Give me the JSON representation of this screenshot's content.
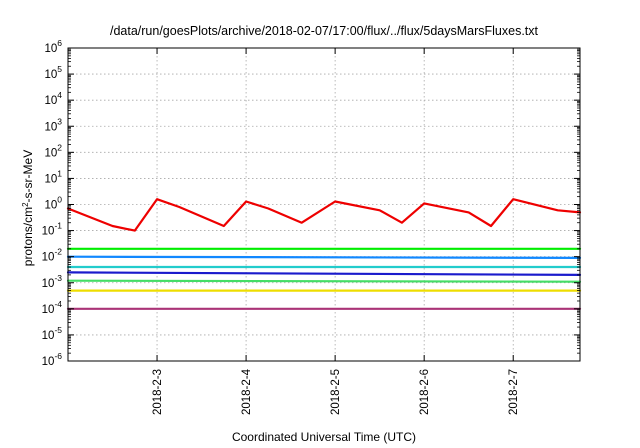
{
  "chart_data": {
    "type": "line",
    "title": "/data/run/goesPlots/archive/2018-02-07/17:00/flux/../flux/5daysMarsFluxes.txt",
    "xlabel": "Coordinated Universal Time (UTC)",
    "ylabel": "protons/cm²-s-sr-MeV",
    "ylabel_parts": {
      "pre": "protons/cm",
      "sup": "2",
      "post": "-s-sr-MeV"
    },
    "scale_y": "log",
    "ylim": [
      1e-06,
      1000000.0
    ],
    "xlim": [
      "2018-02-02 00:00",
      "2018-02-07 18:00"
    ],
    "grid": true,
    "legend": "none",
    "x_ticks": [
      {
        "label": "2018-2-3",
        "x": "2018-02-03 00:00"
      },
      {
        "label": "2018-2-4",
        "x": "2018-02-04 00:00"
      },
      {
        "label": "2018-2-5",
        "x": "2018-02-05 00:00"
      },
      {
        "label": "2018-2-6",
        "x": "2018-02-06 00:00"
      },
      {
        "label": "2018-2-7",
        "x": "2018-02-07 00:00"
      }
    ],
    "y_ticks": [
      {
        "base": "10",
        "exp": "-6",
        "value": 1e-06
      },
      {
        "base": "10",
        "exp": "-5",
        "value": 1e-05
      },
      {
        "base": "10",
        "exp": "-4",
        "value": 0.0001
      },
      {
        "base": "10",
        "exp": "-3",
        "value": 0.001
      },
      {
        "base": "10",
        "exp": "-2",
        "value": 0.01
      },
      {
        "base": "10",
        "exp": "-1",
        "value": 0.1
      },
      {
        "base": "10",
        "exp": "0",
        "value": 1.0
      },
      {
        "base": "10",
        "exp": "1",
        "value": 10.0
      },
      {
        "base": "10",
        "exp": "2",
        "value": 100.0
      },
      {
        "base": "10",
        "exp": "3",
        "value": 1000.0
      },
      {
        "base": "10",
        "exp": "4",
        "value": 10000.0
      },
      {
        "base": "10",
        "exp": "5",
        "value": 100000.0
      },
      {
        "base": "10",
        "exp": "6",
        "value": 1000000.0
      }
    ],
    "series": [
      {
        "color": "#ee0000",
        "x": [
          "2018-02-02 00:00",
          "2018-02-02 12:00",
          "2018-02-02 18:00",
          "2018-02-03 00:00",
          "2018-02-03 06:00",
          "2018-02-03 18:00",
          "2018-02-04 00:00",
          "2018-02-04 06:00",
          "2018-02-04 15:00",
          "2018-02-05 00:00",
          "2018-02-05 12:00",
          "2018-02-05 18:00",
          "2018-02-06 00:00",
          "2018-02-06 12:00",
          "2018-02-06 18:00",
          "2018-02-07 00:00",
          "2018-02-07 12:00",
          "2018-02-07 18:00"
        ],
        "values": [
          0.7,
          0.15,
          0.1,
          1.6,
          0.8,
          0.15,
          1.3,
          0.7,
          0.2,
          1.3,
          0.6,
          0.2,
          1.1,
          0.5,
          0.15,
          1.6,
          0.6,
          0.5
        ]
      },
      {
        "color": "#00ee00",
        "x": [
          "2018-02-02 00:00",
          "2018-02-07 18:00"
        ],
        "values": [
          0.02,
          0.02
        ]
      },
      {
        "color": "#1188ff",
        "x": [
          "2018-02-02 00:00",
          "2018-02-07 18:00"
        ],
        "values": [
          0.01,
          0.009
        ]
      },
      {
        "color": "#22cccc",
        "x": [
          "2018-02-02 00:00",
          "2018-02-07 18:00"
        ],
        "values": [
          0.004,
          0.004
        ]
      },
      {
        "color": "#1a1acc",
        "x": [
          "2018-02-02 00:00",
          "2018-02-07 18:00"
        ],
        "values": [
          0.0025,
          0.002
        ]
      },
      {
        "color": "#44dd66",
        "x": [
          "2018-02-02 00:00",
          "2018-02-07 18:00"
        ],
        "values": [
          0.0012,
          0.0011
        ]
      },
      {
        "color": "#eedd00",
        "x": [
          "2018-02-02 00:00",
          "2018-02-07 18:00"
        ],
        "values": [
          0.0005,
          0.0005
        ]
      },
      {
        "color": "#aa3377",
        "x": [
          "2018-02-02 00:00",
          "2018-02-07 18:00"
        ],
        "values": [
          0.0001,
          0.0001
        ]
      }
    ]
  }
}
